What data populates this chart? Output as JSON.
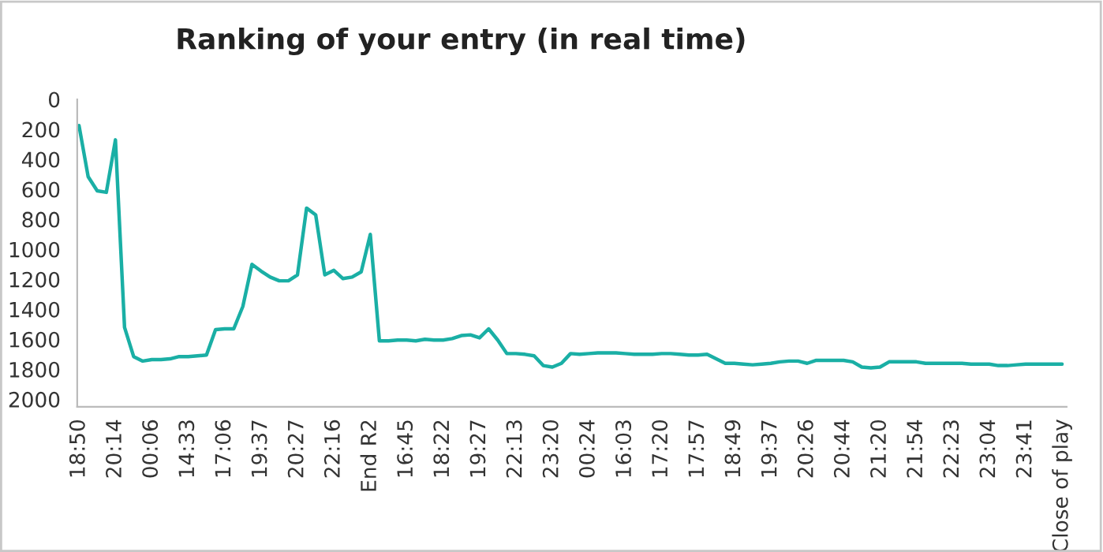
{
  "chart_data": {
    "type": "line",
    "title": "Ranking of your entry (in real time)",
    "categories": [
      "18:50",
      null,
      null,
      null,
      "20:14",
      null,
      null,
      null,
      "00:06",
      null,
      null,
      null,
      "14:33",
      null,
      null,
      null,
      "17:06",
      null,
      null,
      null,
      "19:37",
      null,
      null,
      null,
      "20:27",
      null,
      null,
      null,
      "22:16",
      null,
      null,
      null,
      "End R2",
      null,
      null,
      null,
      "16:45",
      null,
      null,
      null,
      "18:22",
      null,
      null,
      null,
      "19:27",
      null,
      null,
      null,
      "22:13",
      null,
      null,
      null,
      "23:20",
      null,
      null,
      null,
      "00:24",
      null,
      null,
      null,
      "16:03",
      null,
      null,
      null,
      "17:20",
      null,
      null,
      null,
      "17:57",
      null,
      null,
      null,
      "18:49",
      null,
      null,
      null,
      "19:37",
      null,
      null,
      null,
      "20:26",
      null,
      null,
      null,
      "20:44",
      null,
      null,
      null,
      "21:20",
      null,
      null,
      null,
      "21:54",
      null,
      null,
      null,
      "22:23",
      null,
      null,
      null,
      "23:04",
      null,
      null,
      null,
      "23:41",
      null,
      null,
      null,
      "Close of play"
    ],
    "series": [
      {
        "color": "#1aafa5",
        "values": [
          175,
          515,
          610,
          620,
          270,
          1520,
          1715,
          1745,
          1735,
          1735,
          1730,
          1715,
          1715,
          1710,
          1705,
          1535,
          1530,
          1530,
          1380,
          1100,
          1145,
          1185,
          1210,
          1210,
          1170,
          725,
          770,
          1170,
          1140,
          1195,
          1185,
          1150,
          900,
          1610,
          1610,
          1605,
          1605,
          1610,
          1600,
          1605,
          1605,
          1595,
          1575,
          1570,
          1590,
          1530,
          1605,
          1695,
          1695,
          1700,
          1710,
          1775,
          1785,
          1760,
          1695,
          1700,
          1695,
          1690,
          1690,
          1690,
          1695,
          1700,
          1700,
          1700,
          1695,
          1695,
          1700,
          1705,
          1705,
          1700,
          1730,
          1760,
          1760,
          1765,
          1770,
          1765,
          1760,
          1750,
          1745,
          1745,
          1760,
          1740,
          1740,
          1740,
          1740,
          1750,
          1785,
          1790,
          1785,
          1750,
          1750,
          1750,
          1750,
          1760,
          1760,
          1760,
          1760,
          1760,
          1765,
          1765,
          1765,
          1775,
          1775,
          1770,
          1765,
          1765,
          1765,
          1765,
          1765
        ]
      }
    ],
    "ylim": [
      2050,
      0
    ],
    "yticks": [
      0,
      200,
      400,
      600,
      800,
      1000,
      1200,
      1400,
      1600,
      1800,
      2000
    ],
    "grid": false,
    "legend": false
  }
}
